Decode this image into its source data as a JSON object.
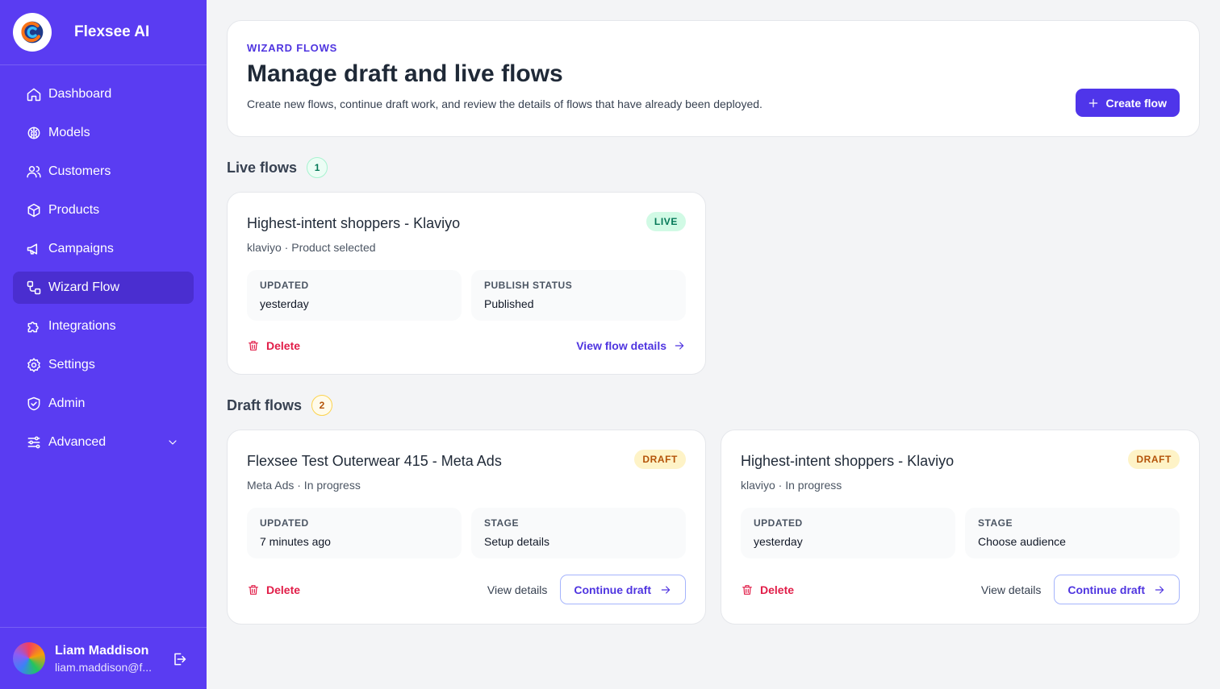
{
  "sidebar": {
    "brand": "Flexsee AI",
    "nav": [
      {
        "label": "Dashboard",
        "icon": "home"
      },
      {
        "label": "Models",
        "icon": "brain"
      },
      {
        "label": "Customers",
        "icon": "users"
      },
      {
        "label": "Products",
        "icon": "box"
      },
      {
        "label": "Campaigns",
        "icon": "megaphone"
      },
      {
        "label": "Wizard Flow",
        "icon": "flow",
        "active": true
      },
      {
        "label": "Integrations",
        "icon": "puzzle"
      },
      {
        "label": "Settings",
        "icon": "gear"
      },
      {
        "label": "Admin",
        "icon": "shield"
      },
      {
        "label": "Advanced",
        "icon": "sliders",
        "expandable": true
      }
    ],
    "user": {
      "name": "Liam Maddison",
      "email": "liam.maddison@f..."
    }
  },
  "header": {
    "eyebrow": "WIZARD FLOWS",
    "title": "Manage draft and live flows",
    "subtitle": "Create new flows, continue draft work, and review the details of flows that have already been deployed.",
    "button": "Create flow"
  },
  "sections": [
    {
      "title": "Live flows",
      "count": "1",
      "tone": "live",
      "cards": [
        {
          "title": "Highest-intent shoppers - Klaviyo",
          "badge": "LIVE",
          "meta": "klaviyo · Product selected",
          "fields": [
            {
              "label": "UPDATED",
              "value": "yesterday"
            },
            {
              "label": "PUBLISH STATUS",
              "value": "Published"
            }
          ],
          "delete": "Delete",
          "link": "View flow details"
        }
      ]
    },
    {
      "title": "Draft flows",
      "count": "2",
      "tone": "draft",
      "cards": [
        {
          "title": "Flexsee Test Outerwear 415 - Meta Ads",
          "badge": "DRAFT",
          "meta": "Meta Ads · In progress",
          "fields": [
            {
              "label": "UPDATED",
              "value": "7 minutes ago"
            },
            {
              "label": "STAGE",
              "value": "Setup details"
            }
          ],
          "delete": "Delete",
          "secondary": "View details",
          "button": "Continue draft"
        },
        {
          "title": "Highest-intent shoppers - Klaviyo",
          "badge": "DRAFT",
          "meta": "klaviyo · In progress",
          "fields": [
            {
              "label": "UPDATED",
              "value": "yesterday"
            },
            {
              "label": "STAGE",
              "value": "Choose audience"
            }
          ],
          "delete": "Delete",
          "secondary": "View details",
          "button": "Continue draft"
        }
      ]
    }
  ]
}
